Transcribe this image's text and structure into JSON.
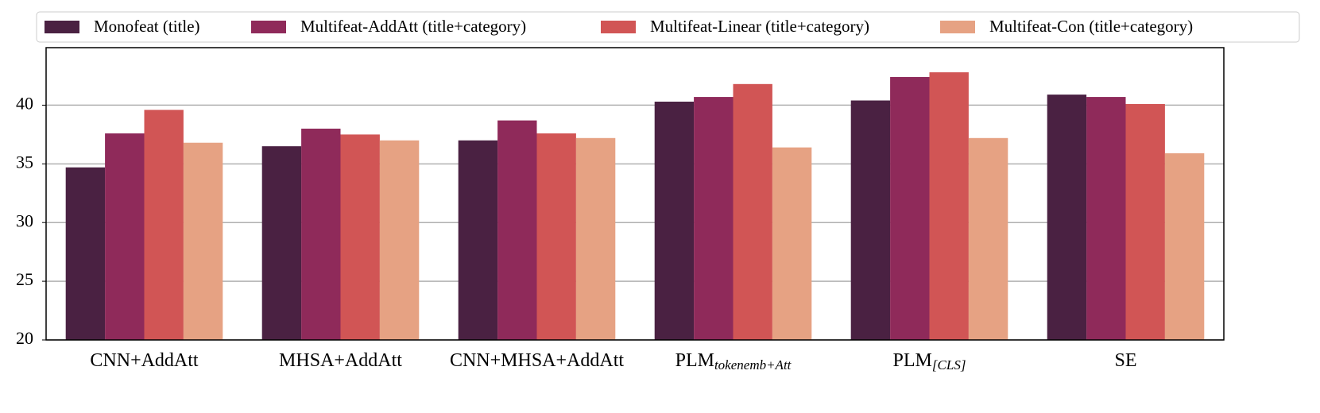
{
  "chart_data": {
    "type": "bar",
    "categories": [
      "CNN+AddAtt",
      "MHSA+AddAtt",
      "CNN+MHSA+AddAtt",
      "PLM",
      "PLM",
      "SE"
    ],
    "category_subscripts": [
      null,
      null,
      null,
      "tokenemb+Att",
      "[CLS]",
      null
    ],
    "series": [
      {
        "name": "Monofeat (title)",
        "color": "#4a2142",
        "values": [
          34.7,
          36.5,
          37.0,
          40.3,
          40.4,
          40.9
        ]
      },
      {
        "name": "Multifeat-AddAtt (title+category)",
        "color": "#8f2a5a",
        "values": [
          37.6,
          38.0,
          38.7,
          40.7,
          42.4,
          40.7
        ]
      },
      {
        "name": "Multifeat-Linear (title+category)",
        "color": "#d15555",
        "values": [
          39.6,
          37.5,
          37.6,
          41.8,
          42.8,
          40.1
        ]
      },
      {
        "name": "Multifeat-Con (title+category)",
        "color": "#e6a283",
        "values": [
          36.8,
          37.0,
          37.2,
          36.4,
          37.2,
          35.9
        ]
      }
    ],
    "ylim": [
      20,
      44.9
    ],
    "yticks": [
      20,
      25,
      30,
      35,
      40
    ],
    "grid": true,
    "legend": "top"
  }
}
